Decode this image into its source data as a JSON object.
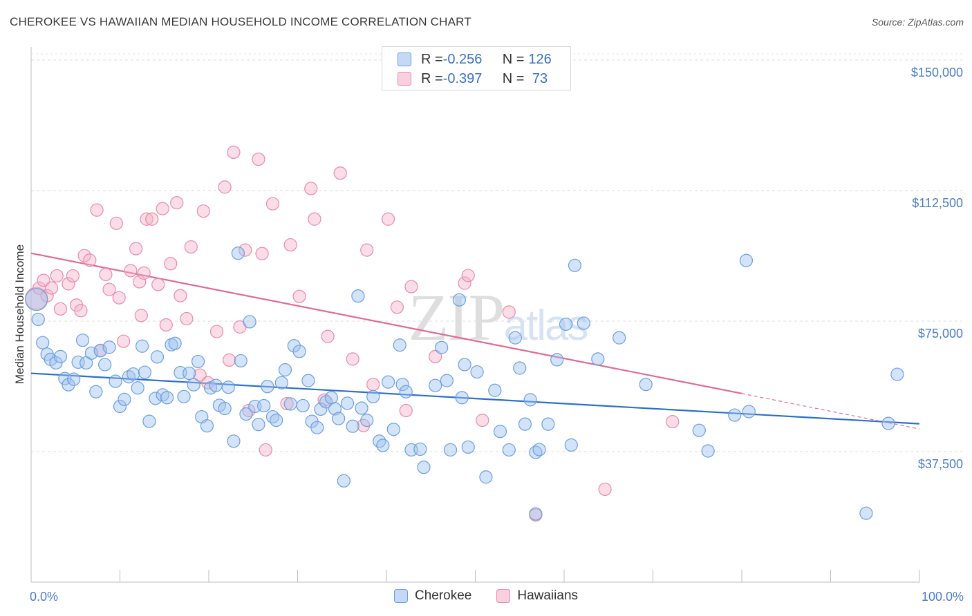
{
  "header": {
    "title": "CHEROKEE VS HAWAIIAN MEDIAN HOUSEHOLD INCOME CORRELATION CHART",
    "source": "Source: ZipAtlas.com"
  },
  "legend": {
    "rows": [
      {
        "r_label": "R = ",
        "r_value": "-0.256",
        "n_label": "N = ",
        "n_value": "126",
        "color": "#9ec0ef"
      },
      {
        "r_label": "R = ",
        "r_value": "-0.397",
        "n_label": "N = ",
        "n_value": " 73",
        "color": "#f5b3c8"
      }
    ]
  },
  "bottom_legend": {
    "items": [
      {
        "label": "Cherokee",
        "color": "#9ec0ef"
      },
      {
        "label": "Hawaiians",
        "color": "#f5b3c8"
      }
    ]
  },
  "watermark": "ZIPatlas",
  "chart_data": {
    "type": "scatter",
    "title": "CHEROKEE VS HAWAIIAN MEDIAN HOUSEHOLD INCOME CORRELATION CHART",
    "xlabel": "",
    "ylabel": "Median Household Income",
    "xlim": [
      0,
      100
    ],
    "ylim": [
      0,
      153750
    ],
    "x_tick_labels": [
      "0.0%",
      "100.0%"
    ],
    "y_ticks": [
      37500,
      75000,
      112500,
      150000
    ],
    "y_tick_labels": [
      "$37,500",
      "$75,000",
      "$112,500",
      "$150,000"
    ],
    "grid": true,
    "legend_position": "top-center",
    "series": [
      {
        "name": "Cherokee",
        "color": "#9ec0ef",
        "stroke": "#6a9ee0",
        "trend": {
          "x": [
            0,
            100
          ],
          "y": [
            60000,
            45500
          ],
          "color": "#2a6fcc"
        },
        "points": [
          [
            0.8,
            75500
          ],
          [
            1.3,
            68800
          ],
          [
            1.8,
            65500
          ],
          [
            2.2,
            64000
          ],
          [
            2.8,
            63000
          ],
          [
            3.3,
            64800
          ],
          [
            3.8,
            58500
          ],
          [
            4.2,
            56700
          ],
          [
            4.8,
            58300
          ],
          [
            5.3,
            63200
          ],
          [
            5.8,
            69500
          ],
          [
            6.2,
            63000
          ],
          [
            6.8,
            65800
          ],
          [
            7.3,
            54700
          ],
          [
            7.8,
            66500
          ],
          [
            8.3,
            62500
          ],
          [
            8.8,
            67500
          ],
          [
            9.5,
            57700
          ],
          [
            10.0,
            50500
          ],
          [
            10.5,
            52500
          ],
          [
            11.0,
            59000
          ],
          [
            11.5,
            59800
          ],
          [
            12.0,
            55800
          ],
          [
            12.5,
            67800
          ],
          [
            12.8,
            60300
          ],
          [
            13.3,
            46200
          ],
          [
            14.0,
            52800
          ],
          [
            14.2,
            64700
          ],
          [
            14.8,
            53800
          ],
          [
            15.3,
            53000
          ],
          [
            15.8,
            68200
          ],
          [
            16.2,
            68600
          ],
          [
            16.8,
            60200
          ],
          [
            17.2,
            53300
          ],
          [
            17.8,
            60000
          ],
          [
            18.3,
            56700
          ],
          [
            18.8,
            63400
          ],
          [
            19.2,
            47500
          ],
          [
            19.8,
            44900
          ],
          [
            20.2,
            55800
          ],
          [
            20.8,
            56500
          ],
          [
            21.2,
            50800
          ],
          [
            21.8,
            49900
          ],
          [
            22.2,
            56000
          ],
          [
            22.8,
            40500
          ],
          [
            23.3,
            94500
          ],
          [
            23.6,
            63600
          ],
          [
            24.2,
            48300
          ],
          [
            24.6,
            74800
          ],
          [
            25.2,
            50500
          ],
          [
            25.6,
            45300
          ],
          [
            26.2,
            50700
          ],
          [
            26.6,
            56200
          ],
          [
            27.2,
            47500
          ],
          [
            27.6,
            46500
          ],
          [
            28.2,
            57300
          ],
          [
            28.6,
            61000
          ],
          [
            29.2,
            51200
          ],
          [
            29.6,
            67900
          ],
          [
            30.2,
            66300
          ],
          [
            30.6,
            50700
          ],
          [
            31.2,
            57900
          ],
          [
            31.6,
            46200
          ],
          [
            32.2,
            44400
          ],
          [
            32.6,
            49700
          ],
          [
            33.2,
            51800
          ],
          [
            33.8,
            53000
          ],
          [
            34.2,
            49800
          ],
          [
            34.6,
            47000
          ],
          [
            35.2,
            29100
          ],
          [
            35.6,
            51400
          ],
          [
            36.2,
            44800
          ],
          [
            36.8,
            82200
          ],
          [
            37.2,
            50000
          ],
          [
            37.8,
            46500
          ],
          [
            38.5,
            53300
          ],
          [
            39.2,
            40500
          ],
          [
            39.6,
            39300
          ],
          [
            40.2,
            57500
          ],
          [
            40.8,
            43900
          ],
          [
            41.5,
            68100
          ],
          [
            41.8,
            56800
          ],
          [
            42.2,
            54700
          ],
          [
            42.8,
            38000
          ],
          [
            43.8,
            38200
          ],
          [
            44.2,
            33000
          ],
          [
            45.5,
            56500
          ],
          [
            46.2,
            67400
          ],
          [
            46.8,
            57900
          ],
          [
            47.2,
            38000
          ],
          [
            48.2,
            81100
          ],
          [
            48.5,
            53000
          ],
          [
            48.8,
            62500
          ],
          [
            49.2,
            38800
          ],
          [
            50.2,
            60400
          ],
          [
            51.2,
            30200
          ],
          [
            52.2,
            55100
          ],
          [
            52.8,
            43300
          ],
          [
            53.8,
            38000
          ],
          [
            54.5,
            70200
          ],
          [
            55.0,
            61500
          ],
          [
            55.6,
            45400
          ],
          [
            56.2,
            52400
          ],
          [
            56.8,
            37300
          ],
          [
            57.2,
            38100
          ],
          [
            58.2,
            45400
          ],
          [
            59.2,
            63900
          ],
          [
            60.2,
            74100
          ],
          [
            60.8,
            39400
          ],
          [
            61.2,
            91000
          ],
          [
            62.2,
            74400
          ],
          [
            63.8,
            64100
          ],
          [
            66.2,
            70200
          ],
          [
            69.2,
            56800
          ],
          [
            75.2,
            43600
          ],
          [
            76.2,
            37700
          ],
          [
            79.2,
            48000
          ],
          [
            80.5,
            92400
          ],
          [
            80.8,
            49000
          ],
          [
            94.0,
            19800
          ],
          [
            96.5,
            45600
          ],
          [
            97.5,
            59700
          ],
          [
            0.6,
            81200
          ],
          [
            56.8,
            19600
          ]
        ]
      },
      {
        "name": "Hawaiians",
        "color": "#f5b3c8",
        "stroke": "#e88aa8",
        "trend": {
          "x": [
            0,
            80
          ],
          "y": [
            94500,
            54200
          ],
          "dashed_to": [
            100,
            44000
          ],
          "color": "#e06a92"
        },
        "points": [
          [
            0.6,
            81500
          ],
          [
            0.9,
            84500
          ],
          [
            1.4,
            86700
          ],
          [
            1.8,
            82300
          ],
          [
            2.3,
            84500
          ],
          [
            2.9,
            88000
          ],
          [
            3.3,
            78500
          ],
          [
            4.2,
            85700
          ],
          [
            4.7,
            88000
          ],
          [
            5.1,
            79600
          ],
          [
            5.6,
            78000
          ],
          [
            6.0,
            93800
          ],
          [
            6.6,
            92500
          ],
          [
            7.4,
            106900
          ],
          [
            7.8,
            66600
          ],
          [
            8.4,
            88400
          ],
          [
            8.8,
            84100
          ],
          [
            9.6,
            103100
          ],
          [
            9.9,
            81700
          ],
          [
            10.4,
            69200
          ],
          [
            11.2,
            89500
          ],
          [
            11.8,
            95800
          ],
          [
            12.2,
            86300
          ],
          [
            12.4,
            76600
          ],
          [
            12.7,
            88800
          ],
          [
            13.0,
            104300
          ],
          [
            13.6,
            104300
          ],
          [
            14.3,
            85500
          ],
          [
            14.8,
            107300
          ],
          [
            15.2,
            73900
          ],
          [
            15.7,
            91500
          ],
          [
            16.4,
            109000
          ],
          [
            16.8,
            82300
          ],
          [
            17.5,
            75700
          ],
          [
            18.0,
            96300
          ],
          [
            19.0,
            59500
          ],
          [
            19.4,
            106600
          ],
          [
            19.9,
            57300
          ],
          [
            20.9,
            72000
          ],
          [
            21.8,
            113500
          ],
          [
            22.3,
            63800
          ],
          [
            22.8,
            123500
          ],
          [
            23.5,
            73300
          ],
          [
            24.1,
            95400
          ],
          [
            24.5,
            49300
          ],
          [
            25.6,
            121500
          ],
          [
            26.0,
            94400
          ],
          [
            26.4,
            38000
          ],
          [
            27.2,
            108700
          ],
          [
            28.8,
            51300
          ],
          [
            29.2,
            96900
          ],
          [
            30.2,
            82100
          ],
          [
            31.5,
            113100
          ],
          [
            31.9,
            104300
          ],
          [
            33.0,
            52300
          ],
          [
            33.4,
            70600
          ],
          [
            34.8,
            117500
          ],
          [
            36.2,
            64100
          ],
          [
            37.4,
            45000
          ],
          [
            37.8,
            95400
          ],
          [
            38.5,
            56800
          ],
          [
            40.2,
            104300
          ],
          [
            41.2,
            79000
          ],
          [
            42.2,
            49300
          ],
          [
            42.8,
            84900
          ],
          [
            45.5,
            64800
          ],
          [
            48.8,
            85900
          ],
          [
            49.2,
            88100
          ],
          [
            50.8,
            46500
          ],
          [
            53.8,
            77600
          ],
          [
            56.8,
            19300
          ],
          [
            64.6,
            26700
          ],
          [
            72.2,
            46100
          ]
        ]
      }
    ]
  }
}
